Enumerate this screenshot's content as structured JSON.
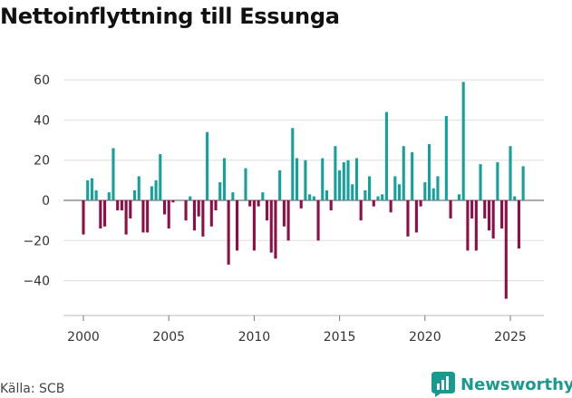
{
  "title": "Nettoinflyttning till Essunga",
  "source": "Källa: SCB",
  "brand": "Newsworthy",
  "colors": {
    "positive": "#14a19a",
    "negative": "#8e0f45",
    "grid": "#dddddd",
    "axis": "#333333",
    "brand": "#1a9a8f"
  },
  "chart_data": {
    "type": "bar",
    "title": "Nettoinflyttning till Essunga",
    "xlabel": "",
    "ylabel": "",
    "granularity": "quarterly",
    "start": "2000-Q1",
    "ylim": [
      -55,
      68
    ],
    "yticks": [
      60,
      40,
      20,
      0,
      -20,
      -40
    ],
    "ytick_labels": [
      "60",
      "40",
      "20",
      "0",
      "−20",
      "−40"
    ],
    "xticks": [
      2000,
      2005,
      2010,
      2015,
      2020,
      2025
    ],
    "series": [
      {
        "name": "Nettoinflyttning",
        "values": [
          -17,
          10,
          11,
          5,
          -14,
          -13,
          4,
          26,
          -5,
          -5,
          -17,
          -9,
          5,
          12,
          -16,
          -16,
          7,
          10,
          23,
          -7,
          -14,
          -1,
          0,
          0,
          -10,
          2,
          -15,
          -8,
          -18,
          34,
          -13,
          -5,
          9,
          21,
          -32,
          4,
          -25,
          0,
          16,
          -3,
          -25,
          -3,
          4,
          -10,
          -26,
          -29,
          15,
          -13,
          -20,
          36,
          21,
          -4,
          20,
          3,
          2,
          -20,
          21,
          5,
          -5,
          27,
          15,
          19,
          20,
          8,
          21,
          -10,
          5,
          12,
          -3,
          2,
          3,
          44,
          -6,
          12,
          8,
          27,
          -18,
          24,
          -16,
          -3,
          9,
          28,
          6,
          12,
          0,
          42,
          -9,
          0,
          3,
          59,
          -25,
          -9,
          -25,
          18,
          -9,
          -15,
          -19,
          19,
          -14,
          -49,
          27,
          2,
          -24,
          17
        ]
      }
    ]
  }
}
